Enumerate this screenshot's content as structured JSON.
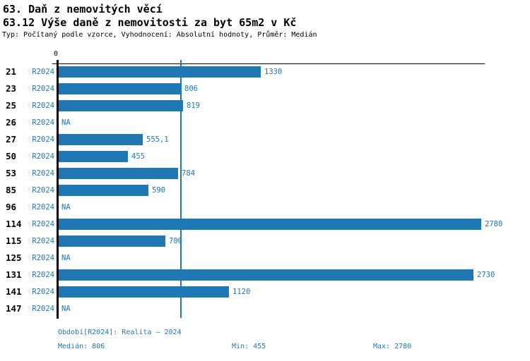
{
  "header": {
    "title": "63. Daň z nemovitých věcí",
    "subtitle": "63.12 Výše daně z nemovitosti za byt 65m2 v Kč",
    "meta_line": "Typ: Počítaný podle vzorce, Vyhodnocení: Absolutní hodnoty, Průměr: Medián"
  },
  "chart_data": {
    "type": "bar",
    "orientation": "horizontal",
    "title": "63.12 Výše daně z nemovitosti za byt 65m2 v Kč",
    "xlabel": "",
    "ylabel": "",
    "axis": {
      "zero_tick_label": "0",
      "xlim": [
        0,
        2790
      ],
      "grid": false
    },
    "series_label": "R2024",
    "categories": [
      "21",
      "23",
      "25",
      "26",
      "27",
      "50",
      "53",
      "85",
      "96",
      "114",
      "115",
      "125",
      "131",
      "141",
      "147"
    ],
    "values": [
      1330,
      806,
      819,
      null,
      555.1,
      455,
      784,
      590,
      null,
      2780,
      700,
      null,
      2730,
      1120,
      null
    ],
    "value_labels": [
      "1330",
      "806",
      "819",
      "NA",
      "555,1",
      "455",
      "784",
      "590",
      "NA",
      "2780",
      "700",
      "NA",
      "2730",
      "1120",
      "NA"
    ],
    "median_reference_value": 806,
    "colors": {
      "bar": "#2077b4",
      "value_label": "#2077b4",
      "series_label": "#2077b4",
      "median_line": "#2077b4",
      "axis": "#000000",
      "category_label": "#000000"
    }
  },
  "footer": {
    "period": "Období[R2024]: Realita – 2024",
    "median": "Medián: 806",
    "min": "Min: 455",
    "max": "Max: 2780"
  }
}
